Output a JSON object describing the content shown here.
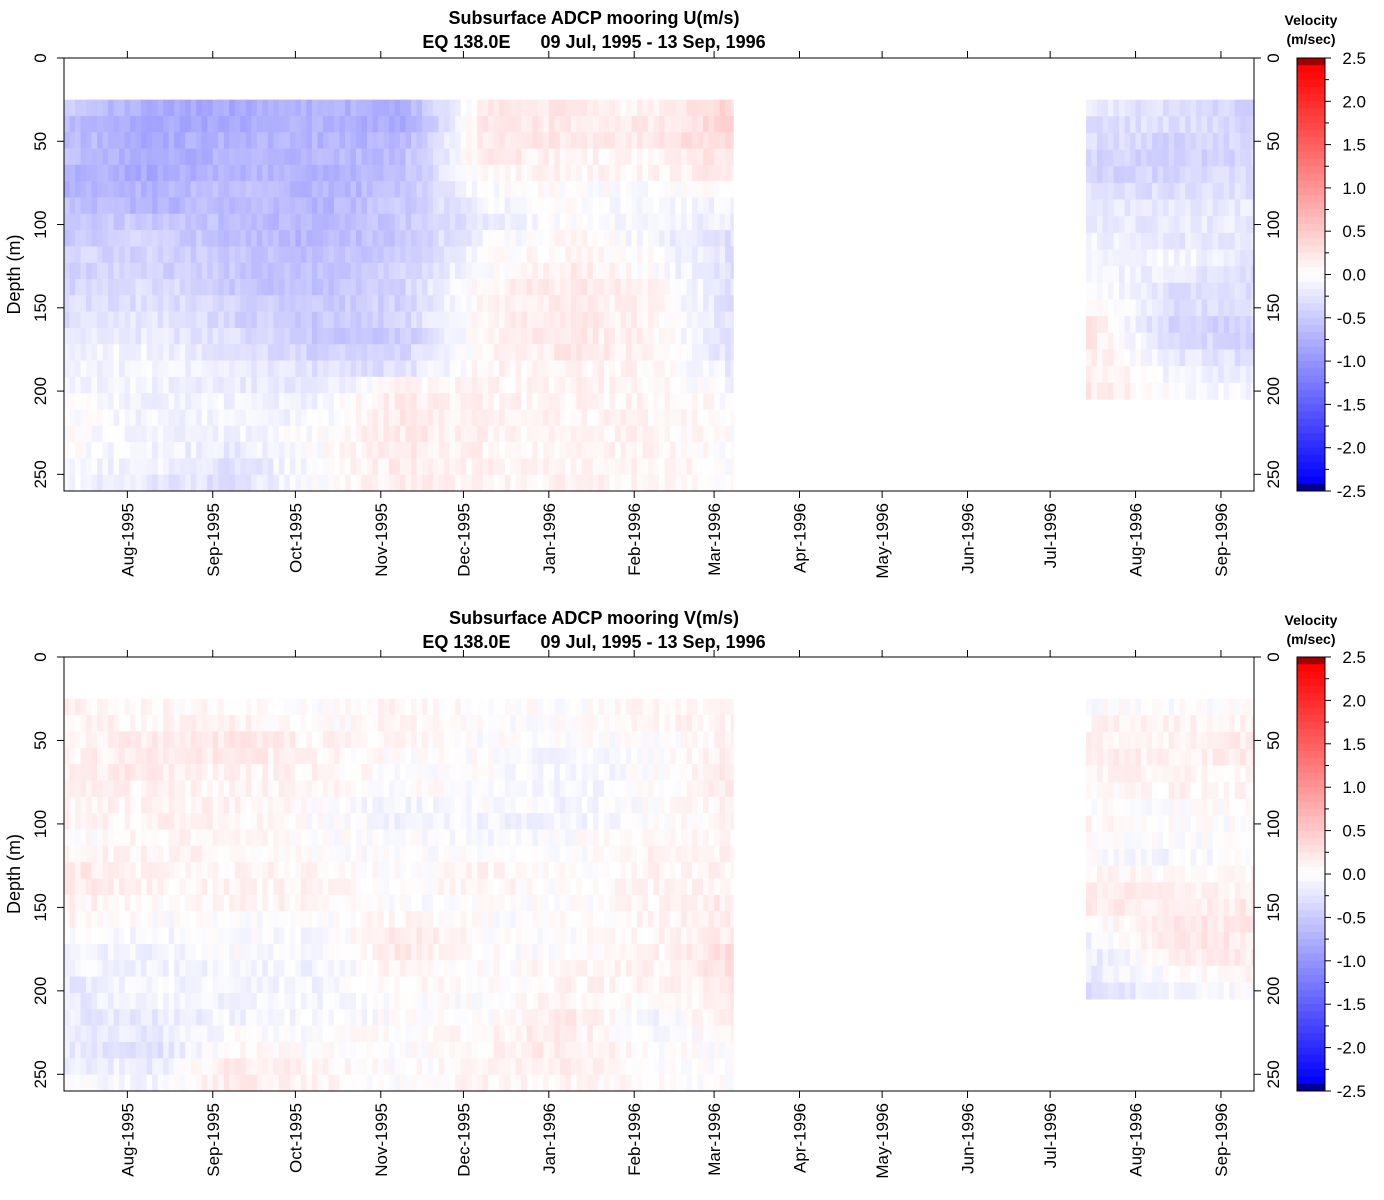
{
  "chart_data": [
    {
      "type": "heatmap",
      "title": "Subsurface ADCP mooring U(m/s)",
      "subtitle": "EQ 138.0E      09 Jul, 1995 - 13 Sep, 1996",
      "ylabel": "Depth (m)",
      "xlabel": "",
      "ylim": [
        260,
        0
      ],
      "y_ticks": [
        "0",
        "50",
        "100",
        "150",
        "200",
        "250"
      ],
      "x_ticks": [
        "Aug-1995",
        "Sep-1995",
        "Oct-1995",
        "Nov-1995",
        "Dec-1995",
        "Jan-1996",
        "Feb-1996",
        "Mar-1996",
        "Apr-1996",
        "May-1996",
        "Jun-1996",
        "Jul-1996",
        "Aug-1996",
        "Sep-1996"
      ],
      "x_range": [
        "1995-07-09",
        "1996-09-13"
      ],
      "grid": false,
      "depths": [
        30,
        40,
        50,
        60,
        70,
        80,
        90,
        100,
        110,
        120,
        130,
        140,
        150,
        160,
        170,
        180,
        190,
        200,
        210,
        220,
        230,
        240,
        250,
        260
      ],
      "segments": [
        {
          "start": "1995-07-09",
          "end": "1996-03-08",
          "depth_range": [
            25,
            260
          ],
          "months": [
            "Jul-1995",
            "Aug-1995",
            "Sep-1995",
            "Oct-1995",
            "Nov-1995",
            "Dec-1995",
            "Jan-1996",
            "Feb-1996",
            "Mar-1996"
          ],
          "values": [
            [
              -0.5,
              -0.6,
              -0.6,
              -0.6,
              -0.7,
              -0.7,
              -0.6,
              -0.5,
              -0.5,
              -0.4,
              -0.4,
              -0.4,
              -0.3,
              -0.3,
              -0.2,
              -0.1,
              -0.1,
              -0.1,
              0.0,
              0.0,
              0.0,
              0.0,
              -0.1,
              -0.1
            ],
            [
              -0.8,
              -0.8,
              -0.8,
              -0.8,
              -0.8,
              -0.7,
              -0.7,
              -0.5,
              -0.4,
              -0.4,
              -0.4,
              -0.3,
              -0.3,
              -0.2,
              -0.2,
              -0.1,
              -0.1,
              -0.1,
              -0.1,
              -0.1,
              -0.1,
              -0.1,
              -0.1,
              -0.2
            ],
            [
              -0.8,
              -0.8,
              -0.7,
              -0.7,
              -0.7,
              -0.6,
              -0.6,
              -0.6,
              -0.6,
              -0.5,
              -0.5,
              -0.5,
              -0.4,
              -0.4,
              -0.3,
              -0.3,
              -0.2,
              -0.2,
              -0.1,
              -0.1,
              -0.1,
              -0.2,
              -0.3,
              -0.3
            ],
            [
              -0.7,
              -0.7,
              -0.7,
              -0.7,
              -0.7,
              -0.7,
              -0.7,
              -0.7,
              -0.7,
              -0.6,
              -0.6,
              -0.6,
              -0.5,
              -0.5,
              -0.5,
              -0.4,
              -0.3,
              -0.2,
              -0.1,
              -0.1,
              0.0,
              0.0,
              0.0,
              0.0
            ],
            [
              -0.8,
              -0.8,
              -0.7,
              -0.6,
              -0.6,
              -0.6,
              -0.5,
              -0.5,
              -0.5,
              -0.5,
              -0.4,
              -0.4,
              -0.4,
              -0.4,
              -0.5,
              -0.4,
              -0.3,
              0.1,
              0.2,
              0.2,
              0.2,
              0.2,
              0.2,
              0.2
            ],
            [
              0.2,
              0.2,
              0.2,
              0.2,
              0.1,
              0.0,
              -0.1,
              -0.2,
              -0.1,
              0.0,
              0.0,
              0.1,
              0.1,
              0.1,
              0.1,
              0.1,
              0.1,
              0.1,
              0.1,
              0.1,
              0.1,
              0.1,
              0.1,
              0.1
            ],
            [
              0.2,
              0.2,
              0.2,
              0.1,
              0.1,
              0.0,
              0.0,
              0.0,
              0.1,
              0.1,
              0.2,
              0.2,
              0.2,
              0.2,
              0.2,
              0.2,
              0.1,
              0.1,
              0.1,
              0.1,
              0.1,
              0.1,
              0.1,
              0.1
            ],
            [
              0.1,
              0.2,
              0.2,
              0.1,
              0.1,
              0.0,
              -0.1,
              -0.1,
              -0.1,
              0.0,
              0.0,
              0.1,
              0.1,
              0.1,
              0.1,
              0.1,
              0.1,
              0.1,
              0.1,
              0.1,
              0.1,
              0.1,
              0.1,
              0.1
            ],
            [
              0.4,
              0.4,
              0.4,
              0.3,
              0.2,
              0.0,
              -0.1,
              -0.2,
              -0.3,
              -0.3,
              -0.3,
              -0.3,
              -0.3,
              -0.3,
              -0.3,
              -0.3,
              -0.2,
              -0.1,
              0.0,
              0.0,
              0.0,
              0.0,
              0.0,
              0.0
            ]
          ]
        },
        {
          "start": "1996-07-14",
          "end": "1996-09-13",
          "depth_range": [
            25,
            205
          ],
          "months": [
            "Jul-1996",
            "Aug-1996",
            "Sep-1996"
          ],
          "values": [
            [
              -0.2,
              -0.3,
              -0.3,
              -0.4,
              -0.4,
              -0.3,
              -0.2,
              -0.2,
              -0.1,
              -0.1,
              -0.1,
              0.0,
              0.1,
              0.2,
              0.2,
              0.2,
              0.2,
              0.2
            ],
            [
              -0.3,
              -0.3,
              -0.4,
              -0.4,
              -0.4,
              -0.3,
              -0.2,
              -0.2,
              -0.2,
              -0.1,
              -0.2,
              -0.3,
              -0.3,
              -0.4,
              -0.3,
              -0.2,
              -0.1,
              0.0
            ],
            [
              -0.4,
              -0.4,
              -0.4,
              -0.4,
              -0.3,
              -0.3,
              -0.2,
              -0.2,
              -0.2,
              -0.2,
              -0.3,
              -0.3,
              -0.3,
              -0.4,
              -0.4,
              -0.3,
              -0.2,
              -0.1
            ]
          ]
        }
      ]
    },
    {
      "type": "heatmap",
      "title": "Subsurface ADCP mooring V(m/s)",
      "subtitle": "EQ 138.0E      09 Jul, 1995 - 13 Sep, 1996",
      "ylabel": "Depth (m)",
      "xlabel": "",
      "ylim": [
        260,
        0
      ],
      "y_ticks": [
        "0",
        "50",
        "100",
        "150",
        "200",
        "250"
      ],
      "x_ticks": [
        "Aug-1995",
        "Sep-1995",
        "Oct-1995",
        "Nov-1995",
        "Dec-1995",
        "Jan-1996",
        "Feb-1996",
        "Mar-1996",
        "Apr-1996",
        "May-1996",
        "Jun-1996",
        "Jul-1996",
        "Aug-1996",
        "Sep-1996"
      ],
      "x_range": [
        "1995-07-09",
        "1996-09-13"
      ],
      "grid": false,
      "depths": [
        30,
        40,
        50,
        60,
        70,
        80,
        90,
        100,
        110,
        120,
        130,
        140,
        150,
        160,
        170,
        180,
        190,
        200,
        210,
        220,
        230,
        240,
        250,
        260
      ],
      "segments": [
        {
          "start": "1995-07-09",
          "end": "1996-03-08",
          "depth_range": [
            25,
            260
          ],
          "months": [
            "Jul-1995",
            "Aug-1995",
            "Sep-1995",
            "Oct-1995",
            "Nov-1995",
            "Dec-1995",
            "Jan-1996",
            "Feb-1996",
            "Mar-1996"
          ],
          "values": [
            [
              0.1,
              0.1,
              0.1,
              0.1,
              0.1,
              0.1,
              0.1,
              0.1,
              0.0,
              0.1,
              0.2,
              0.2,
              0.2,
              0.1,
              0.0,
              -0.1,
              -0.1,
              -0.2,
              -0.2,
              -0.2,
              -0.2,
              -0.2,
              -0.1,
              0.0
            ],
            [
              0.1,
              0.1,
              0.2,
              0.2,
              0.2,
              0.1,
              0.1,
              0.1,
              0.1,
              0.1,
              0.1,
              0.1,
              0.0,
              0.0,
              -0.1,
              -0.1,
              -0.1,
              -0.1,
              -0.1,
              -0.2,
              -0.2,
              -0.3,
              -0.2,
              -0.1
            ],
            [
              0.0,
              0.1,
              0.2,
              0.2,
              0.1,
              0.1,
              0.1,
              0.1,
              0.1,
              0.1,
              0.1,
              0.1,
              0.1,
              0.0,
              0.0,
              0.0,
              -0.1,
              -0.1,
              -0.1,
              -0.1,
              0.0,
              0.1,
              0.2,
              0.2
            ],
            [
              0.0,
              0.0,
              0.1,
              0.1,
              0.1,
              0.1,
              0.0,
              0.0,
              0.0,
              0.0,
              0.1,
              0.1,
              0.1,
              0.0,
              -0.1,
              -0.1,
              -0.1,
              -0.1,
              -0.1,
              -0.1,
              0.0,
              0.0,
              0.1,
              0.1
            ],
            [
              0.1,
              0.1,
              0.1,
              0.0,
              0.0,
              0.0,
              -0.1,
              -0.1,
              0.0,
              0.0,
              0.0,
              0.0,
              0.0,
              0.1,
              0.2,
              0.2,
              0.1,
              0.1,
              0.0,
              0.0,
              0.0,
              0.0,
              0.0,
              0.0
            ],
            [
              0.0,
              0.0,
              0.0,
              0.0,
              0.0,
              0.0,
              0.0,
              -0.1,
              -0.1,
              0.0,
              0.1,
              0.1,
              0.0,
              0.0,
              0.0,
              0.0,
              0.0,
              0.0,
              0.0,
              0.0,
              0.1,
              0.1,
              0.1,
              0.1
            ],
            [
              0.0,
              0.0,
              0.0,
              -0.1,
              -0.1,
              -0.1,
              -0.1,
              -0.1,
              0.0,
              0.0,
              0.0,
              0.0,
              0.0,
              0.0,
              0.0,
              0.0,
              0.1,
              0.1,
              0.1,
              0.2,
              0.2,
              0.2,
              0.2,
              0.1
            ],
            [
              0.1,
              0.1,
              0.0,
              0.0,
              0.0,
              0.0,
              0.0,
              0.0,
              0.1,
              0.1,
              0.1,
              0.1,
              0.1,
              0.1,
              0.1,
              0.1,
              0.1,
              0.1,
              0.0,
              -0.1,
              -0.1,
              0.0,
              0.0,
              0.0
            ],
            [
              0.1,
              0.1,
              0.1,
              0.2,
              0.2,
              0.2,
              0.1,
              0.1,
              0.1,
              0.1,
              0.1,
              0.1,
              0.2,
              0.2,
              0.2,
              0.3,
              0.3,
              0.2,
              0.2,
              0.2,
              0.1,
              0.0,
              0.0,
              0.0
            ]
          ]
        },
        {
          "start": "1996-07-14",
          "end": "1996-09-13",
          "depth_range": [
            25,
            205
          ],
          "months": [
            "Jul-1996",
            "Aug-1996",
            "Sep-1996"
          ],
          "values": [
            [
              0.0,
              0.1,
              0.1,
              0.2,
              0.1,
              0.0,
              0.0,
              0.1,
              0.0,
              0.0,
              0.1,
              0.2,
              0.2,
              0.0,
              -0.1,
              -0.2,
              -0.2,
              -0.3
            ],
            [
              0.0,
              0.1,
              0.1,
              0.1,
              0.1,
              0.1,
              0.0,
              0.0,
              0.0,
              -0.1,
              0.0,
              0.1,
              0.1,
              0.2,
              0.2,
              0.1,
              0.0,
              -0.1
            ],
            [
              0.0,
              0.1,
              0.2,
              0.2,
              0.1,
              0.1,
              0.0,
              0.0,
              0.0,
              0.0,
              0.1,
              0.1,
              0.2,
              0.2,
              0.2,
              0.2,
              0.1,
              0.0
            ]
          ]
        }
      ]
    }
  ],
  "colorbar": {
    "title_line1": "Velocity",
    "title_line2": "(m/sec)",
    "range": [
      -2.5,
      2.5
    ],
    "labels": [
      "2.5",
      "2.0",
      "1.5",
      "1.0",
      "0.5",
      "0.0",
      "-0.5",
      "-1.0",
      "-1.5",
      "-2.0",
      "-2.5"
    ],
    "colors": {
      "min_end": "#000040",
      "strong_negative": "#0000ff",
      "neutral": "#ffffff",
      "strong_positive": "#ff0000",
      "max_end": "#600000"
    }
  }
}
